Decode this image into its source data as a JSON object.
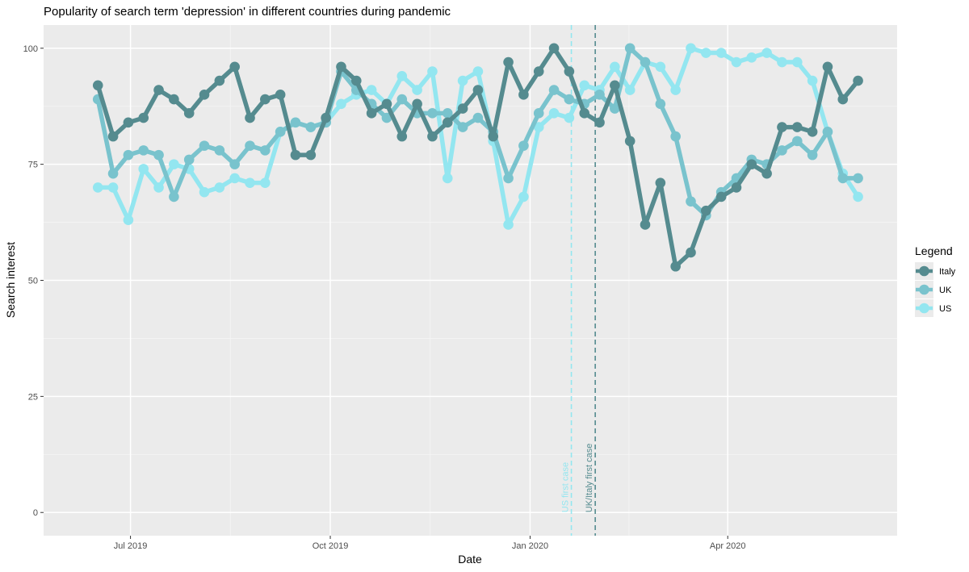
{
  "chart_data": {
    "type": "line",
    "title": "Popularity of search term 'depression' in different countries during pandemic",
    "xlabel": "Date",
    "ylabel": "Search interest",
    "xlim": [
      "2019-05-22",
      "2020-06-18"
    ],
    "ylim": [
      -5,
      105
    ],
    "x_ticks": [
      {
        "date": "2019-07-01",
        "label": "Jul 2019"
      },
      {
        "date": "2019-10-01",
        "label": "Oct 2019"
      },
      {
        "date": "2020-01-01",
        "label": "Jan 2020"
      },
      {
        "date": "2020-04-01",
        "label": "Apr 2020"
      }
    ],
    "y_ticks": [
      0,
      25,
      50,
      75,
      100
    ],
    "grid": true,
    "legend": {
      "title": "Legend",
      "position": "right"
    },
    "dates": [
      "2019-06-16",
      "2019-06-23",
      "2019-06-30",
      "2019-07-07",
      "2019-07-14",
      "2019-07-21",
      "2019-07-28",
      "2019-08-04",
      "2019-08-11",
      "2019-08-18",
      "2019-08-25",
      "2019-09-01",
      "2019-09-08",
      "2019-09-15",
      "2019-09-22",
      "2019-09-29",
      "2019-10-06",
      "2019-10-13",
      "2019-10-20",
      "2019-10-27",
      "2019-11-03",
      "2019-11-10",
      "2019-11-17",
      "2019-11-24",
      "2019-12-01",
      "2019-12-08",
      "2019-12-15",
      "2019-12-22",
      "2019-12-29",
      "2020-01-05",
      "2020-01-12",
      "2020-01-19",
      "2020-01-26",
      "2020-02-02",
      "2020-02-09",
      "2020-02-16",
      "2020-02-23",
      "2020-03-01",
      "2020-03-08",
      "2020-03-15",
      "2020-03-22",
      "2020-03-29",
      "2020-04-05",
      "2020-04-12",
      "2020-04-19",
      "2020-04-26",
      "2020-05-03",
      "2020-05-10",
      "2020-05-17",
      "2020-05-24",
      "2020-05-31",
      "2020-06-07"
    ],
    "series": [
      {
        "name": "Italy",
        "color": "#558b8f",
        "values": [
          92,
          81,
          84,
          85,
          91,
          89,
          86,
          90,
          93,
          96,
          85,
          89,
          90,
          77,
          77,
          85,
          96,
          93,
          86,
          88,
          81,
          88,
          81,
          84,
          87,
          91,
          81,
          97,
          90,
          95,
          100,
          95,
          86,
          84,
          92,
          80,
          62,
          71,
          53,
          56,
          65,
          68,
          70,
          75,
          73,
          83,
          83,
          82,
          96,
          89,
          93,
          null
        ]
      },
      {
        "name": "UK",
        "color": "#79c3cd",
        "values": [
          89,
          73,
          77,
          78,
          77,
          68,
          76,
          79,
          78,
          75,
          79,
          78,
          82,
          84,
          83,
          84,
          95,
          91,
          88,
          85,
          89,
          86,
          86,
          86,
          83,
          85,
          82,
          72,
          79,
          86,
          91,
          89,
          88,
          90,
          87,
          100,
          97,
          88,
          81,
          67,
          64,
          69,
          72,
          76,
          75,
          78,
          80,
          77,
          82,
          72,
          72,
          null
        ]
      },
      {
        "name": "US",
        "color": "#93e6f0",
        "values": [
          70,
          70,
          63,
          74,
          70,
          75,
          74,
          69,
          70,
          72,
          71,
          71,
          82,
          84,
          83,
          84,
          88,
          90,
          91,
          88,
          94,
          91,
          95,
          72,
          93,
          95,
          80,
          62,
          68,
          83,
          86,
          85,
          92,
          91,
          96,
          91,
          97,
          96,
          91,
          100,
          99,
          99,
          97,
          98,
          99,
          97,
          97,
          93,
          82,
          73,
          68,
          null
        ]
      }
    ],
    "vlines": [
      {
        "date": "2020-01-20",
        "label": "US first case",
        "color": "#93e6f0"
      },
      {
        "date": "2020-01-31",
        "label": "UK/Italy first case",
        "color": "#558b8f"
      }
    ]
  }
}
